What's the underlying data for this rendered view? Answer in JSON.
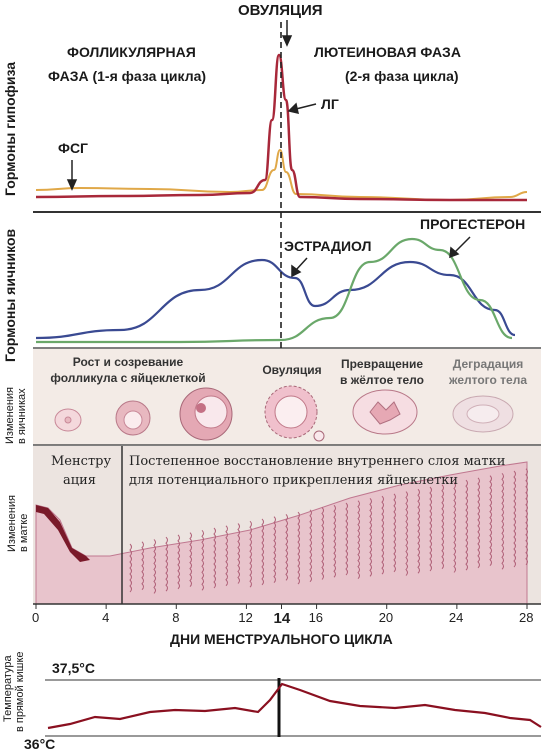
{
  "diagram": {
    "ovulation_top": "ОВУЛЯЦИЯ",
    "follicular_phase": "ФОЛЛИКУЛЯРНАЯ",
    "follicular_phase_sub": "ФАЗА (1-я фаза цикла)",
    "luteal_phase": "ЛЮТЕИНОВАЯ ФАЗА",
    "luteal_phase_sub": "(2-я фаза цикла)",
    "lh": "ЛГ",
    "fsh": "ФСГ",
    "pituitary_axis": "Гормоны гипофиза",
    "ovarian_axis": "Гормоны яичников",
    "estradiol": "ЭСТРАДИОЛ",
    "progesterone": "ПРОГЕСТЕРОН",
    "ovary_axis": "Изменения\nв яичниках",
    "ovary_axis_1": "Изменения",
    "ovary_axis_2": "в яичниках",
    "ovary_stages": [
      {
        "l1": "Рост и созревание",
        "l2": "фолликула с яйцеклеткой"
      },
      {
        "l1": "Овуляция",
        "l2": ""
      },
      {
        "l1": "Превращение",
        "l2": "в жёлтое тело"
      },
      {
        "l1": "Деградация",
        "l2": "желтого тела"
      }
    ],
    "uterus_axis_1": "Изменения",
    "uterus_axis_2": "в матке",
    "menstruation_l1": "Менстру",
    "menstruation_l2": "ация",
    "restoration_l1": "Постепенное восстановление внутреннего слоя матки",
    "restoration_l2": "для потенциального прикрепления яйцеклетки",
    "x_axis_title": "ДНИ МЕНСТРУАЛЬНОГО ЦИКЛА",
    "x_ticks": [
      "0",
      "4",
      "8",
      "12",
      "14",
      "16",
      "20",
      "24",
      "28"
    ],
    "temp_axis_1": "Температура",
    "temp_axis_2": "в прямой кишке",
    "temp_high": "37,5°C",
    "temp_low": "36°C",
    "colors": {
      "lh": "#a8283a",
      "fsh": "#e0a848",
      "estradiol": "#3a4a92",
      "progesterone": "#6aa86a",
      "uterus": "#c07890",
      "temperature": "#8a1020"
    }
  }
}
